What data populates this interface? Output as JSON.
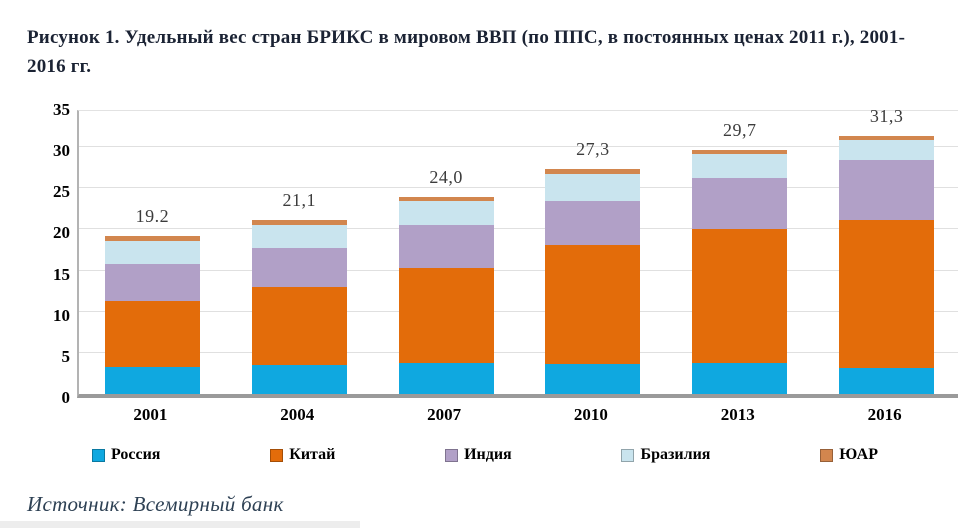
{
  "header": {
    "title": "Рисунок  1. Удельный вес стран БРИКС в мировом ВВП (по ППС, в постоянных ценах 2011 г.), 2001-2016 гг."
  },
  "footer": {
    "source": "Источник: Всемирный банк"
  },
  "chart_data": {
    "type": "bar",
    "stacked": true,
    "title": "Удельный вес стран БРИКС в мировом ВВП (по ППС, в постоянных ценах 2011 г.), 2001-2016 гг.",
    "categories": [
      "2001",
      "2004",
      "2007",
      "2010",
      "2013",
      "2016"
    ],
    "series": [
      {
        "name": "Россия",
        "color": "#0fa8e0",
        "values": [
          3.3,
          3.5,
          3.8,
          3.6,
          3.8,
          3.2
        ]
      },
      {
        "name": "Китай",
        "color": "#e36c0a",
        "values": [
          8.0,
          9.5,
          11.5,
          14.5,
          16.3,
          17.9
        ]
      },
      {
        "name": "Индия",
        "color": "#b1a0c7",
        "values": [
          4.5,
          4.7,
          5.3,
          5.4,
          6.1,
          7.3
        ]
      },
      {
        "name": "Бразилия",
        "color": "#c9e4ee",
        "values": [
          2.8,
          2.8,
          2.9,
          3.3,
          3.0,
          2.5
        ]
      },
      {
        "name": "ЮАР",
        "color": "#d2864e",
        "values": [
          0.6,
          0.6,
          0.5,
          0.5,
          0.5,
          0.4
        ]
      }
    ],
    "totals": [
      19.2,
      21.1,
      24.0,
      27.3,
      29.7,
      31.3
    ],
    "total_labels": [
      "19.2",
      "21,1",
      "24,0",
      "27,3",
      "29,7",
      "31,3"
    ],
    "ylabel": "",
    "xlabel": "",
    "ylim": [
      0,
      35
    ],
    "yticks": [
      0,
      5,
      10,
      15,
      20,
      25,
      30,
      35
    ],
    "grid": true,
    "legend_position": "bottom"
  }
}
